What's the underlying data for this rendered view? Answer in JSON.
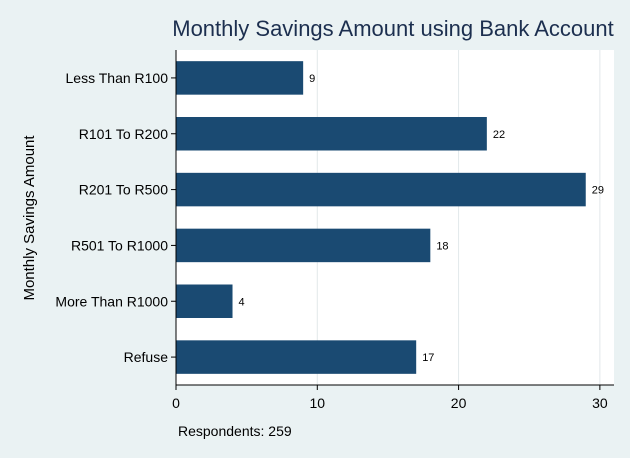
{
  "chart_data": {
    "type": "bar",
    "orientation": "horizontal",
    "title": "Monthly Savings Amount using Bank Account",
    "ylabel": "Monthly Savings Amount",
    "xlabel": "",
    "categories": [
      "Less Than R100",
      "R101 To R200",
      "R201 To R500",
      "R501 To R1000",
      "More Than R1000",
      "Refuse"
    ],
    "values": [
      9,
      22,
      29,
      18,
      4,
      17
    ],
    "data_labels": [
      "9",
      "22",
      "29",
      "18",
      "4",
      "17"
    ],
    "xlim": [
      0,
      31
    ],
    "xticks": [
      0,
      10,
      20,
      30
    ],
    "xtick_labels": [
      "0",
      "10",
      "20",
      "30"
    ],
    "grid": true,
    "note": "Respondents: 259",
    "colors": {
      "background": "#eaf2f3",
      "plot_background": "#ffffff",
      "bar": "#1a4a72",
      "title": "#1c2f4f",
      "grid": "#e2e8ea"
    }
  }
}
